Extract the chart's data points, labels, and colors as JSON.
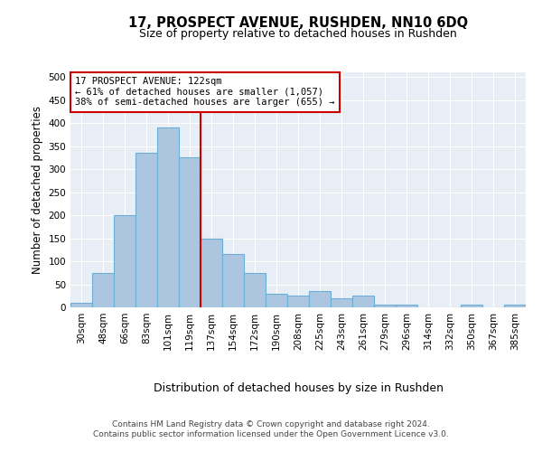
{
  "title": "17, PROSPECT AVENUE, RUSHDEN, NN10 6DQ",
  "subtitle": "Size of property relative to detached houses in Rushden",
  "xlabel": "Distribution of detached houses by size in Rushden",
  "ylabel": "Number of detached properties",
  "categories": [
    "30sqm",
    "48sqm",
    "66sqm",
    "83sqm",
    "101sqm",
    "119sqm",
    "137sqm",
    "154sqm",
    "172sqm",
    "190sqm",
    "208sqm",
    "225sqm",
    "243sqm",
    "261sqm",
    "279sqm",
    "296sqm",
    "314sqm",
    "332sqm",
    "350sqm",
    "367sqm",
    "385sqm"
  ],
  "values": [
    10,
    75,
    200,
    335,
    390,
    325,
    150,
    115,
    75,
    30,
    25,
    35,
    20,
    25,
    5,
    5,
    0,
    0,
    5,
    0,
    5
  ],
  "bar_color": "#adc6e0",
  "bar_edgecolor": "#6aaed6",
  "bar_linewidth": 0.8,
  "vline_x": 5.5,
  "vline_color": "#cc0000",
  "annotation_title": "17 PROSPECT AVENUE: 122sqm",
  "annotation_line1": "← 61% of detached houses are smaller (1,057)",
  "annotation_line2": "38% of semi-detached houses are larger (655) →",
  "annotation_box_color": "#ffffff",
  "annotation_box_edgecolor": "#cc0000",
  "ylim": [
    0,
    510
  ],
  "yticks": [
    0,
    50,
    100,
    150,
    200,
    250,
    300,
    350,
    400,
    450,
    500
  ],
  "bg_color": "#e8eef5",
  "footer_line1": "Contains HM Land Registry data © Crown copyright and database right 2024.",
  "footer_line2": "Contains public sector information licensed under the Open Government Licence v3.0."
}
